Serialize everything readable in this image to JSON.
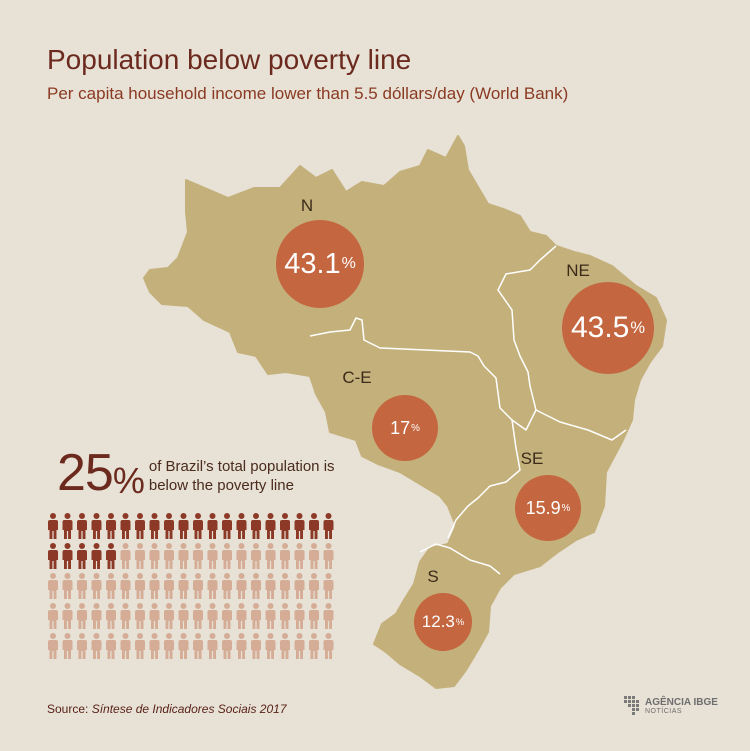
{
  "title": "Population below poverty line",
  "subtitle": "Per capita household income lower than 5.5 dóllars/day (World Bank)",
  "colors": {
    "background": "#e7e1d6",
    "map_fill": "#c4b07a",
    "region_border": "#ffffff",
    "bubble": "#c4663f",
    "title": "#6b2a1d",
    "person_highlight": "#8c3a27",
    "person_muted": "#d5ad96"
  },
  "regions": [
    {
      "code": "N",
      "label": "N",
      "value": "43.1",
      "unit": "%"
    },
    {
      "code": "NE",
      "label": "NE",
      "value": "43.5",
      "unit": "%"
    },
    {
      "code": "CE",
      "label": "C-E",
      "value": "17",
      "unit": "%"
    },
    {
      "code": "SE",
      "label": "SE",
      "value": "15.9",
      "unit": "%"
    },
    {
      "code": "S",
      "label": "S",
      "value": "12.3",
      "unit": "%"
    }
  ],
  "summary": {
    "value": "25",
    "unit": "%",
    "text": "of Brazil’s total population  is below the poverty line",
    "people_total": 100,
    "people_highlighted": 25,
    "person_icon": "person-icon"
  },
  "source": {
    "prefix": "Source: ",
    "name": "Síntese de Indicadores Sociais 2017"
  },
  "logo": {
    "brand": "AGÊNCIA IBGE",
    "sub": "NOTÍCIAS",
    "icon": "ibge-logo-icon"
  }
}
